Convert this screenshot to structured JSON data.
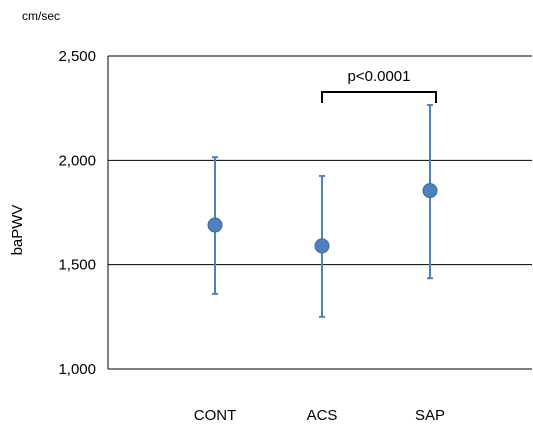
{
  "chart_data": {
    "type": "scatter",
    "unit": "cm/sec",
    "ylabel": "baPWV",
    "ylim": [
      1000,
      2500
    ],
    "yticks": [
      1000,
      1500,
      2000,
      2500
    ],
    "ytick_labels": [
      "1,000",
      "1,500",
      "2,000",
      "2,500"
    ],
    "grid": true,
    "categories": [
      "CONT",
      "ACS",
      "SAP"
    ],
    "points": [
      {
        "category": "CONT",
        "mean": 1690,
        "low": 1360,
        "high": 2015
      },
      {
        "category": "ACS",
        "mean": 1590,
        "low": 1250,
        "high": 1925
      },
      {
        "category": "SAP",
        "mean": 1855,
        "low": 1435,
        "high": 2265
      }
    ],
    "annotation": {
      "text": "p<0.0001",
      "from": "ACS",
      "to": "SAP"
    },
    "colors": {
      "marker": "#4F81BD",
      "errorbar": "#4F81BD",
      "grid": "#000000"
    }
  }
}
